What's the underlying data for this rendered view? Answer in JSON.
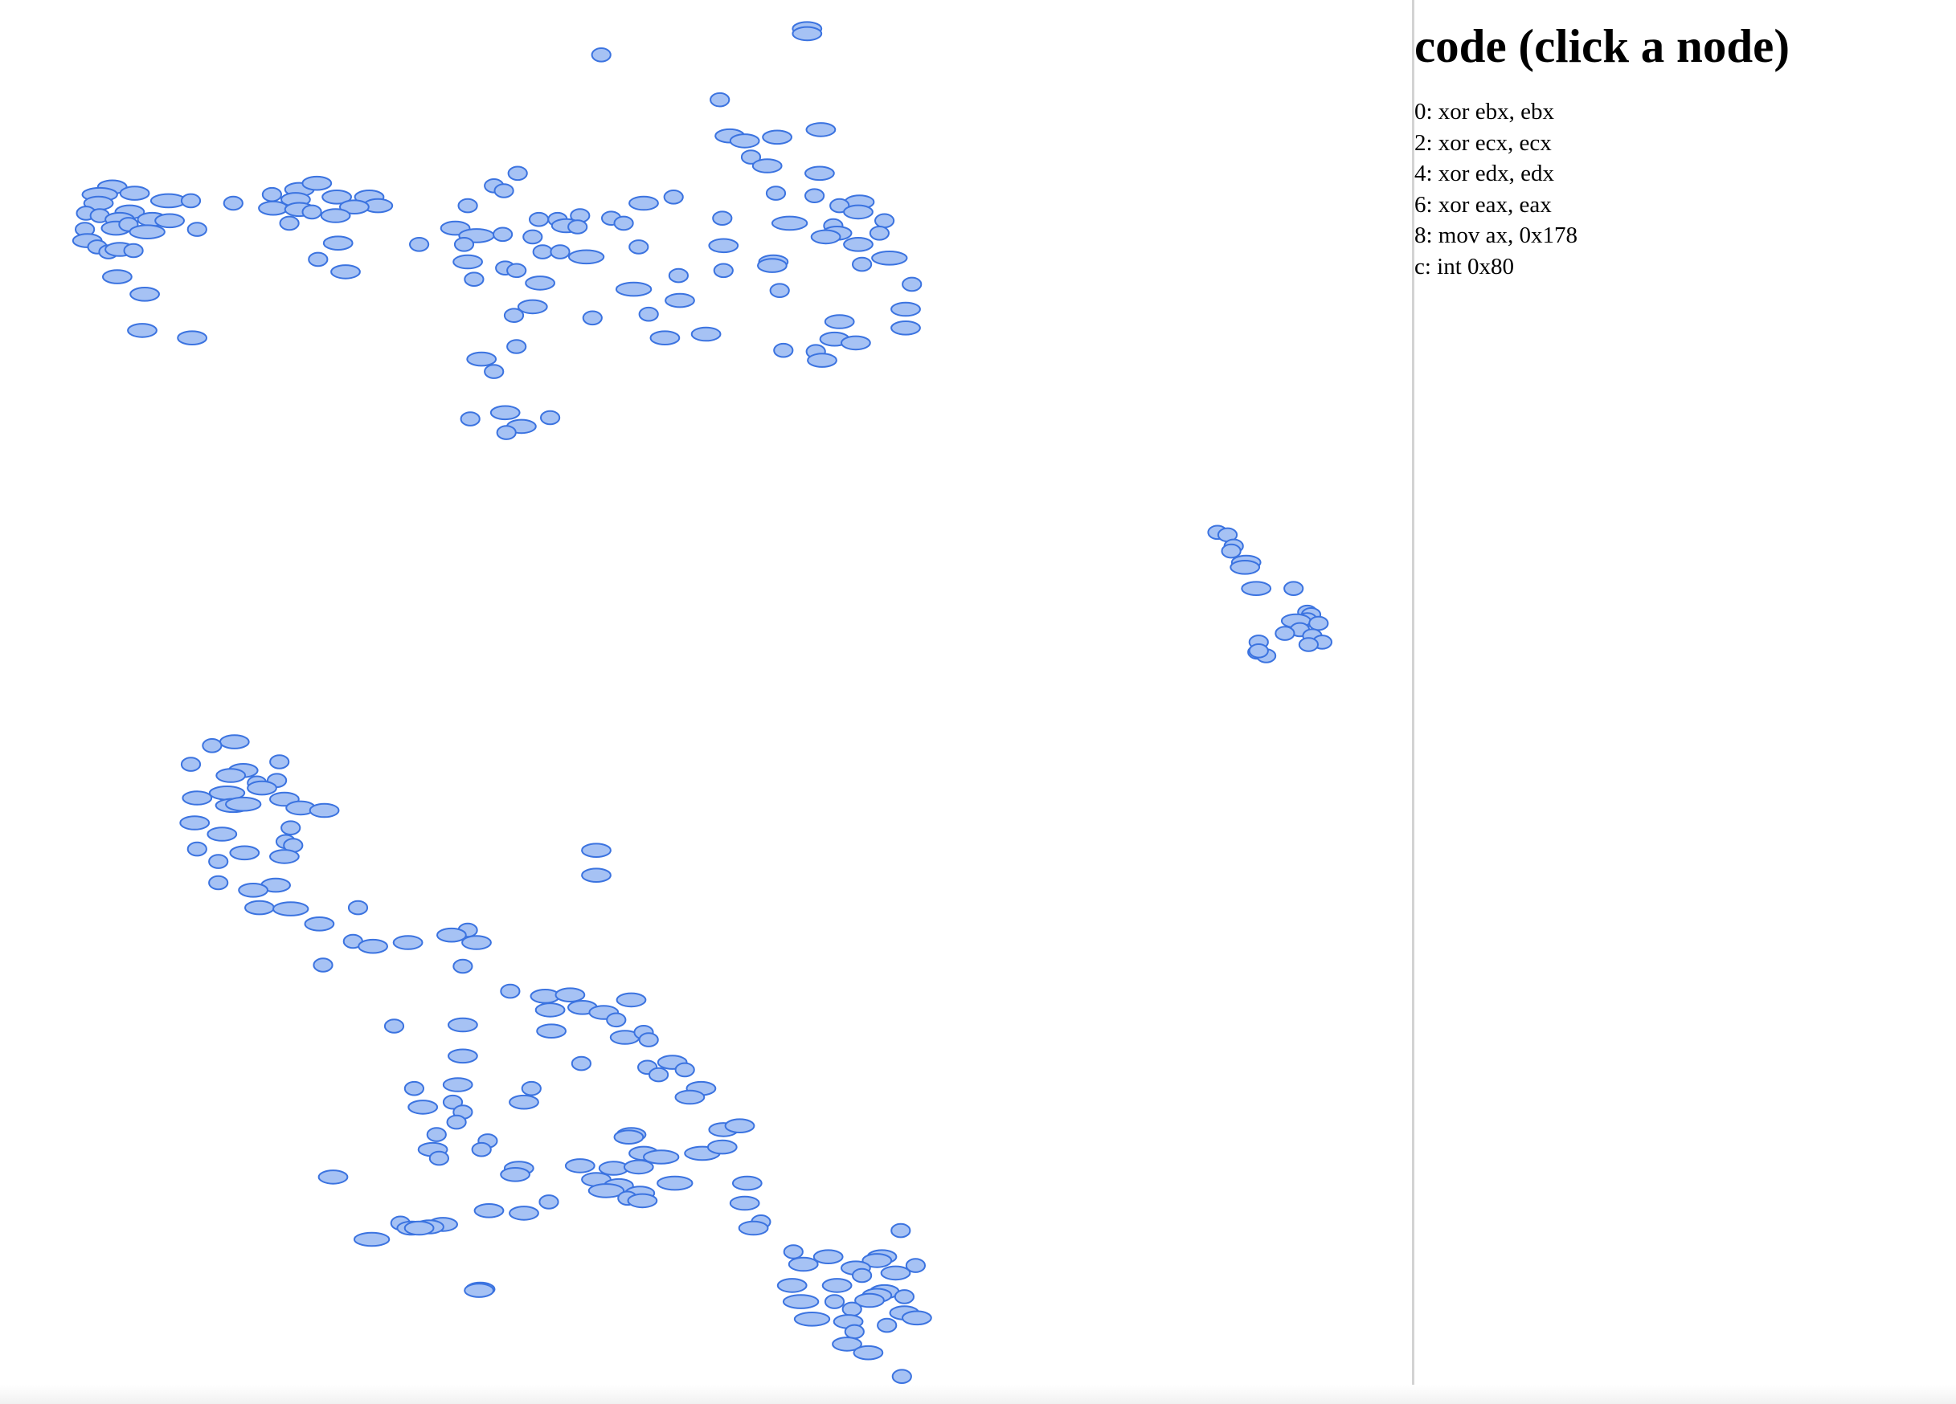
{
  "panel": {
    "title": "code (click a node)",
    "code_lines": [
      "0: xor ebx, ebx",
      "2: xor ecx, ecx",
      "4: xor edx, edx",
      "6: xor eax, eax",
      "8: mov ax, 0x178",
      "c: int 0x80"
    ]
  },
  "colors": {
    "node_fill": "#a6c2f4",
    "node_stroke": "#3b73e0",
    "divider": "#d3d3d3"
  }
}
